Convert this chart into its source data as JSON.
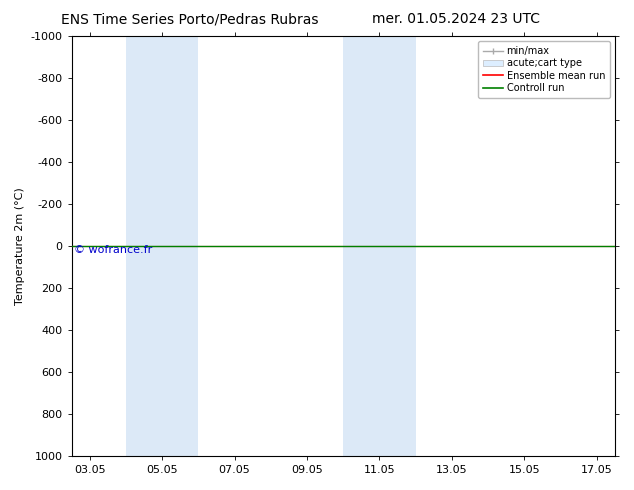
{
  "title_left": "ENS Time Series Porto/Pedras Rubras",
  "title_right": "mer. 01.05.2024 23 UTC",
  "ylabel": "Temperature 2m (°C)",
  "ylim": [
    -1000,
    1000
  ],
  "yticks": [
    -1000,
    -800,
    -600,
    -400,
    -200,
    0,
    200,
    400,
    600,
    800,
    1000
  ],
  "xtick_labels": [
    "03.05",
    "05.05",
    "07.05",
    "09.05",
    "11.05",
    "13.05",
    "15.05",
    "17.05"
  ],
  "xtick_positions": [
    0,
    2,
    4,
    6,
    8,
    10,
    12,
    14
  ],
  "shaded_bands": [
    [
      1.0,
      2.0
    ],
    [
      2.0,
      3.0
    ],
    [
      7.0,
      8.0
    ],
    [
      8.0,
      9.0
    ]
  ],
  "shaded_color": "#dce9f7",
  "ensemble_mean_color": "#ff0000",
  "control_run_color": "#008000",
  "minmax_color": "#aaaaaa",
  "watermark_text": "© wofrance.fr",
  "watermark_color": "#0000cc",
  "background_color": "#ffffff",
  "legend_entries": [
    "min/max",
    "acute;cart type",
    "Ensemble mean run",
    "Controll run"
  ],
  "title_fontsize": 10,
  "axis_fontsize": 8,
  "tick_fontsize": 8,
  "legend_fontsize": 7
}
